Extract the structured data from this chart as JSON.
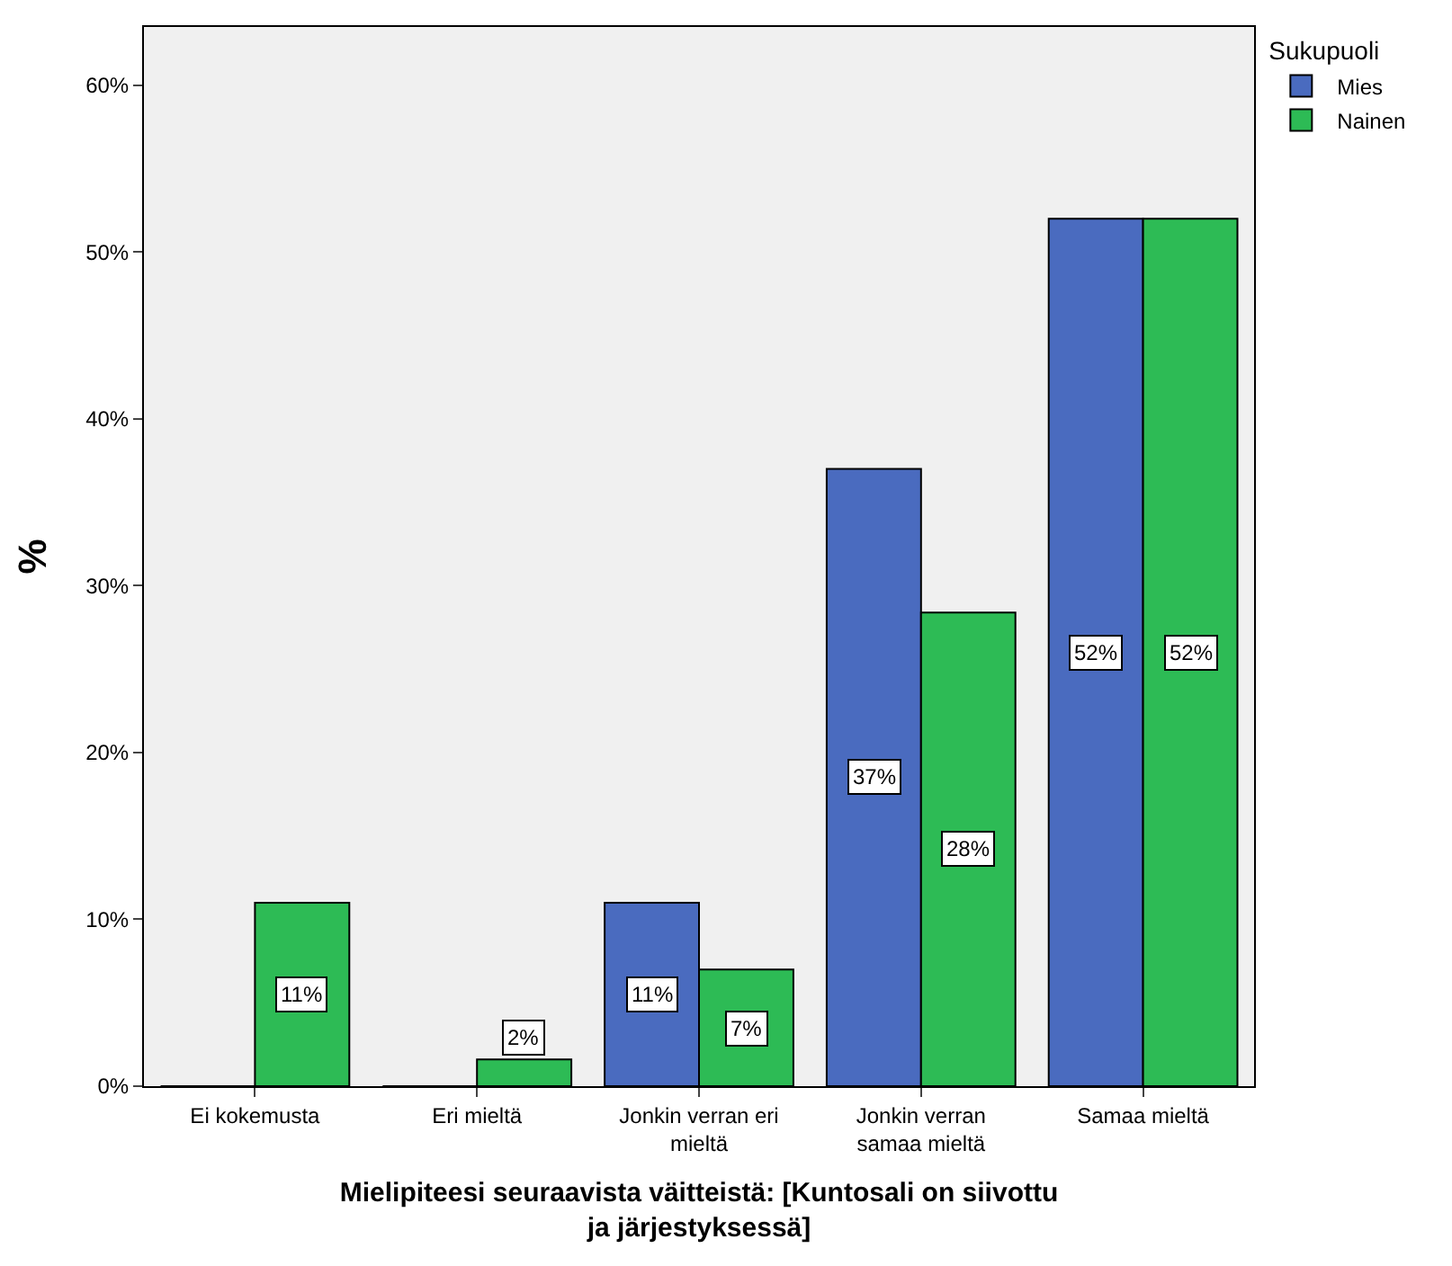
{
  "chart_data": {
    "type": "bar",
    "xlabel": "Mielipiteesi seuraavista väitteistä: [Kuntosali on siivottu\nja järjestyksessä]",
    "ylabel": "%",
    "legend_title": "Sukupuoli",
    "legend": "top right",
    "categories": [
      "Ei kokemusta",
      "Eri mieltä",
      "Jonkin verran eri\nmieltä",
      "Jonkin verran\nsamaa mieltä",
      "Samaa mieltä"
    ],
    "series": [
      {
        "name": "Mies",
        "color": "#4a6bbf",
        "values": [
          0,
          0,
          11,
          37,
          52
        ],
        "value_labels": [
          null,
          null,
          "11%",
          "37%",
          "52%"
        ]
      },
      {
        "name": "Nainen",
        "color": "#2dbb55",
        "values": [
          11,
          1.6,
          7,
          28.4,
          52
        ],
        "value_labels": [
          "11%",
          "2%",
          "7%",
          "28%",
          "52%"
        ]
      }
    ],
    "ylim": [
      0,
      63.5
    ],
    "yticks": [
      {
        "value": 0,
        "label": "0%"
      },
      {
        "value": 10,
        "label": "10%"
      },
      {
        "value": 20,
        "label": "20%"
      },
      {
        "value": 30,
        "label": "30%"
      },
      {
        "value": 40,
        "label": "40%"
      },
      {
        "value": 50,
        "label": "50%"
      },
      {
        "value": 60,
        "label": "60%"
      }
    ],
    "grid": false
  }
}
